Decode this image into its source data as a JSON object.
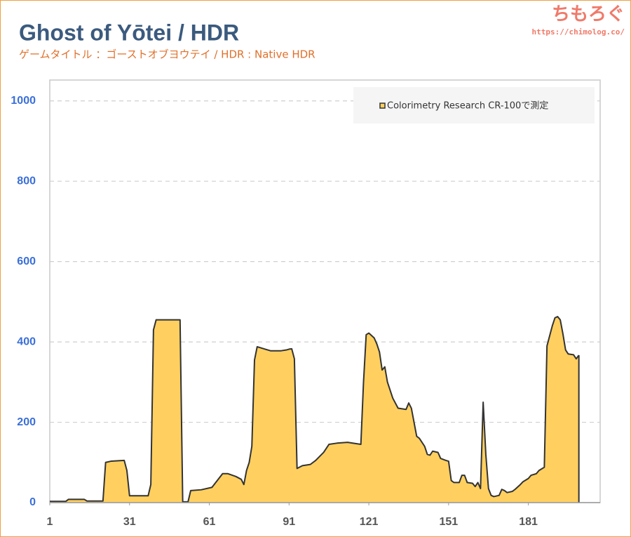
{
  "branding": {
    "logo": "ちもろぐ",
    "url": "https://chimolog.co/"
  },
  "chart_data": {
    "type": "area",
    "title": "Ghost of Yōtei / HDR",
    "subtitle": "ゲームタイトル ：ゴーストオブヨウテイ / HDR : Native HDR",
    "x": [
      1,
      7,
      8,
      14,
      15,
      21,
      22,
      24,
      29,
      30,
      31,
      38,
      39,
      40,
      41,
      50,
      51,
      53,
      54,
      58,
      62,
      64,
      66,
      68,
      71,
      73,
      74,
      75,
      76,
      77,
      78,
      79,
      82,
      84,
      88,
      90,
      91,
      92,
      93,
      94,
      96,
      99,
      101,
      104,
      106,
      109,
      113,
      116,
      118,
      119,
      120,
      121,
      123,
      124,
      125,
      126,
      127,
      128,
      130,
      132,
      135,
      136,
      137,
      139,
      140,
      142,
      143,
      144,
      145,
      147,
      148,
      150,
      151,
      152,
      153,
      155,
      156,
      157,
      158,
      160,
      161,
      162,
      163,
      164,
      165,
      166,
      167,
      168,
      170,
      171,
      172,
      173,
      175,
      176,
      178,
      179,
      181,
      182,
      184,
      185,
      187,
      188,
      189,
      190,
      191,
      192,
      193,
      194,
      195,
      196,
      198,
      199,
      200
    ],
    "series": [
      {
        "name": "Colorimetry Research CR-100で測定",
        "color": "#ffd060",
        "values": [
          3,
          3,
          8,
          8,
          4,
          4,
          100,
          103,
          105,
          80,
          17,
          17,
          45,
          430,
          455,
          455,
          2,
          2,
          30,
          32,
          38,
          55,
          72,
          72,
          65,
          58,
          45,
          80,
          100,
          140,
          355,
          388,
          382,
          378,
          378,
          380,
          382,
          383,
          358,
          85,
          92,
          95,
          105,
          125,
          145,
          148,
          150,
          147,
          145,
          300,
          418,
          422,
          410,
          395,
          375,
          330,
          338,
          300,
          260,
          235,
          232,
          248,
          235,
          165,
          160,
          140,
          120,
          118,
          128,
          125,
          110,
          105,
          103,
          55,
          50,
          50,
          68,
          68,
          50,
          48,
          40,
          50,
          35,
          250,
          120,
          35,
          18,
          15,
          18,
          33,
          30,
          25,
          28,
          33,
          45,
          52,
          60,
          68,
          72,
          80,
          88,
          390,
          415,
          440,
          460,
          463,
          455,
          420,
          380,
          370,
          368,
          358,
          367
        ]
      }
    ],
    "xlim": [
      1,
      208
    ],
    "xticks": [
      1,
      31,
      61,
      91,
      121,
      151,
      181
    ],
    "ylim": [
      0,
      1052
    ],
    "yticks": [
      0,
      200,
      400,
      600,
      800,
      1000
    ],
    "grid": true,
    "legend": "top-right"
  }
}
